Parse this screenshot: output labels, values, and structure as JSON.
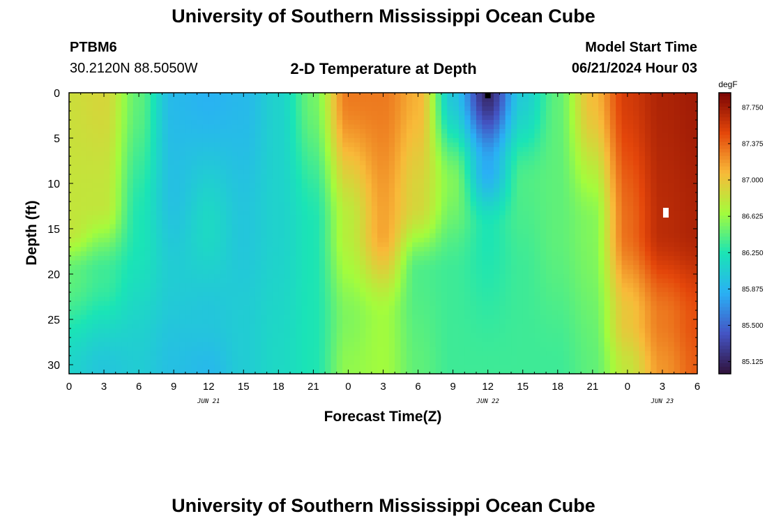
{
  "header": {
    "title": "University of Southern Mississippi Ocean Cube",
    "station": "PTBM6",
    "coords": "30.2120N  88.5050W",
    "plot_title": "2-D Temperature at Depth",
    "model_label": "Model Start Time",
    "model_time": "06/21/2024 Hour 03"
  },
  "footer": {
    "title": "University of Southern Mississippi Ocean Cube"
  },
  "colorbar": {
    "unit": "degF",
    "ticks": [
      "87.750",
      "87.375",
      "87.000",
      "86.625",
      "86.250",
      "85.875",
      "85.500",
      "85.125"
    ],
    "colors": [
      "#30123b",
      "#4454c4",
      "#2ab0f5",
      "#1ae4b6",
      "#a4fc3c",
      "#f8ba39",
      "#e4460a",
      "#7a0403"
    ]
  },
  "chart_data": {
    "type": "heatmap",
    "title": "2-D Temperature at Depth",
    "xlabel": "Forecast Time(Z)",
    "ylabel": "Depth (ft)",
    "x_tick_labels": [
      "0",
      "3",
      "6",
      "9",
      "12",
      "15",
      "18",
      "21",
      "0",
      "3",
      "6",
      "9",
      "12",
      "15",
      "18",
      "21",
      "0",
      "3",
      "6"
    ],
    "x_hours": [
      0,
      3,
      6,
      9,
      12,
      15,
      18,
      21,
      24,
      27,
      30,
      33,
      36,
      39,
      42,
      45,
      48,
      51,
      54
    ],
    "x_date_labels": [
      {
        "hour": 12,
        "text": "JUN 21"
      },
      {
        "hour": 36,
        "text": "JUN 22"
      },
      {
        "hour": 51,
        "text": "JUN 23"
      }
    ],
    "y_tick_labels": [
      "0",
      "5",
      "10",
      "15",
      "20",
      "25",
      "30"
    ],
    "y_values": [
      0,
      5,
      10,
      15,
      20,
      25,
      30
    ],
    "xlim": [
      0,
      54
    ],
    "ylim": [
      0,
      31
    ],
    "zlim": [
      85.0,
      87.9
    ],
    "z_unit": "degF",
    "samples": [
      {
        "hour": 0,
        "profile": [
          [
            0,
            86.85
          ],
          [
            15,
            86.8
          ],
          [
            20,
            86.45
          ],
          [
            31,
            86.1
          ]
        ]
      },
      {
        "hour": 3,
        "profile": [
          [
            0,
            86.9
          ],
          [
            12,
            86.8
          ],
          [
            20,
            86.35
          ],
          [
            31,
            86.0
          ]
        ]
      },
      {
        "hour": 6,
        "profile": [
          [
            0,
            86.45
          ],
          [
            15,
            86.25
          ],
          [
            31,
            86.05
          ]
        ]
      },
      {
        "hour": 9,
        "profile": [
          [
            0,
            85.9
          ],
          [
            10,
            85.95
          ],
          [
            20,
            86.05
          ],
          [
            31,
            85.95
          ]
        ]
      },
      {
        "hour": 12,
        "profile": [
          [
            0,
            85.85
          ],
          [
            15,
            86.15
          ],
          [
            25,
            86.0
          ],
          [
            31,
            85.9
          ]
        ]
      },
      {
        "hour": 15,
        "profile": [
          [
            0,
            85.9
          ],
          [
            15,
            86.0
          ],
          [
            25,
            86.05
          ],
          [
            31,
            86.05
          ]
        ]
      },
      {
        "hour": 18,
        "profile": [
          [
            0,
            86.1
          ],
          [
            15,
            86.1
          ],
          [
            31,
            86.15
          ]
        ]
      },
      {
        "hour": 21,
        "profile": [
          [
            0,
            86.5
          ],
          [
            15,
            86.25
          ],
          [
            31,
            86.25
          ]
        ]
      },
      {
        "hour": 24,
        "profile": [
          [
            0,
            87.3
          ],
          [
            15,
            86.75
          ],
          [
            25,
            86.55
          ],
          [
            31,
            86.6
          ]
        ]
      },
      {
        "hour": 27,
        "profile": [
          [
            0,
            87.3
          ],
          [
            15,
            87.15
          ],
          [
            25,
            86.65
          ],
          [
            31,
            86.65
          ]
        ]
      },
      {
        "hour": 30,
        "profile": [
          [
            0,
            87.1
          ],
          [
            12,
            86.9
          ],
          [
            20,
            86.4
          ],
          [
            31,
            86.45
          ]
        ]
      },
      {
        "hour": 33,
        "profile": [
          [
            0,
            86.0
          ],
          [
            10,
            86.55
          ],
          [
            20,
            86.35
          ],
          [
            31,
            86.35
          ]
        ]
      },
      {
        "hour": 36,
        "profile": [
          [
            0,
            85.15
          ],
          [
            8,
            85.8
          ],
          [
            15,
            86.25
          ],
          [
            31,
            86.35
          ]
        ]
      },
      {
        "hour": 39,
        "profile": [
          [
            0,
            86.05
          ],
          [
            10,
            86.4
          ],
          [
            20,
            86.35
          ],
          [
            31,
            86.35
          ]
        ]
      },
      {
        "hour": 42,
        "profile": [
          [
            0,
            86.45
          ],
          [
            15,
            86.45
          ],
          [
            31,
            86.35
          ]
        ]
      },
      {
        "hour": 45,
        "profile": [
          [
            0,
            87.05
          ],
          [
            15,
            86.55
          ],
          [
            31,
            86.45
          ]
        ]
      },
      {
        "hour": 48,
        "profile": [
          [
            0,
            87.55
          ],
          [
            15,
            87.35
          ],
          [
            25,
            87.0
          ],
          [
            31,
            86.8
          ]
        ]
      },
      {
        "hour": 51,
        "profile": [
          [
            0,
            87.7
          ],
          [
            15,
            87.65
          ],
          [
            25,
            87.3
          ],
          [
            31,
            87.2
          ]
        ]
      },
      {
        "hour": 54,
        "profile": [
          [
            0,
            87.75
          ],
          [
            15,
            87.7
          ],
          [
            25,
            87.45
          ],
          [
            31,
            87.4
          ]
        ]
      }
    ],
    "markers": [
      {
        "hour": 36,
        "depth": 0.3,
        "color": "#000000"
      },
      {
        "hour": 51.3,
        "depth": 13,
        "color": "#ffffff"
      }
    ]
  }
}
